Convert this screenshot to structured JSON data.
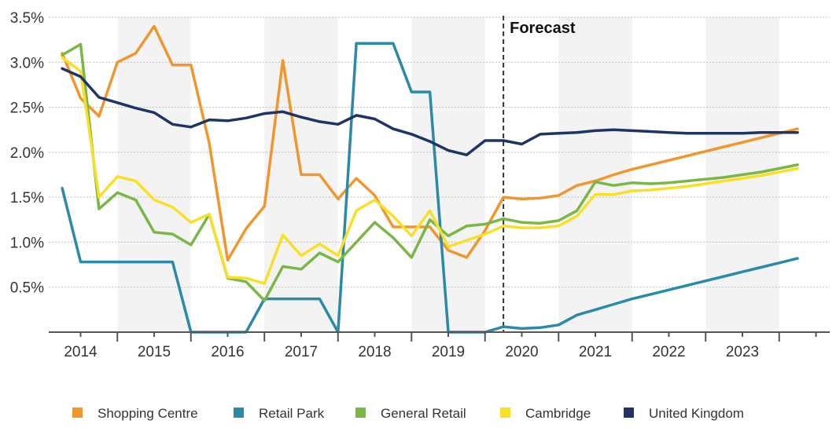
{
  "chart_data": {
    "type": "line",
    "title": "",
    "xlabel": "",
    "ylabel": "",
    "xlim": [
      2013.5,
      2024.0
    ],
    "ylim": [
      0,
      3.5
    ],
    "y_ticks": [
      {
        "value": 0.5,
        "label": "0.5%"
      },
      {
        "value": 1.0,
        "label": "1.0%"
      },
      {
        "value": 1.5,
        "label": "1.5%"
      },
      {
        "value": 2.0,
        "label": "2.0%"
      },
      {
        "value": 2.5,
        "label": "2.5%"
      },
      {
        "value": 3.0,
        "label": "3.0%"
      },
      {
        "value": 3.5,
        "label": "3.5%"
      }
    ],
    "x_ticks": [
      "2014",
      "2015",
      "2016",
      "2017",
      "2018",
      "2019",
      "2020",
      "2021",
      "2022",
      "2023"
    ],
    "grid": "horizontal dotted",
    "year_bands": "alternating shaded",
    "legend_position": "bottom",
    "forecast_marker": {
      "x": 2019.75,
      "label": "Forecast"
    },
    "series": [
      {
        "name": "Shopping Centre",
        "color": "#f0962e",
        "points": [
          [
            2013.75,
            3.1
          ],
          [
            2014.0,
            2.6
          ],
          [
            2014.25,
            2.4
          ],
          [
            2014.5,
            3.0
          ],
          [
            2014.75,
            3.1
          ],
          [
            2015.0,
            3.4
          ],
          [
            2015.25,
            2.97
          ],
          [
            2015.5,
            2.97
          ],
          [
            2015.75,
            2.1
          ],
          [
            2016.0,
            0.8
          ],
          [
            2016.25,
            1.15
          ],
          [
            2016.5,
            1.4
          ],
          [
            2016.75,
            3.02
          ],
          [
            2017.0,
            1.75
          ],
          [
            2017.25,
            1.75
          ],
          [
            2017.5,
            1.48
          ],
          [
            2017.75,
            1.71
          ],
          [
            2018.0,
            1.52
          ],
          [
            2018.25,
            1.17
          ],
          [
            2018.5,
            1.17
          ],
          [
            2018.75,
            1.17
          ],
          [
            2019.0,
            0.91
          ],
          [
            2019.25,
            0.83
          ],
          [
            2019.5,
            1.13
          ],
          [
            2019.75,
            1.5
          ],
          [
            2020.0,
            1.48
          ],
          [
            2020.25,
            1.49
          ],
          [
            2020.5,
            1.52
          ],
          [
            2020.75,
            1.63
          ],
          [
            2021.0,
            1.68
          ],
          [
            2021.25,
            1.75
          ],
          [
            2021.5,
            1.81
          ],
          [
            2021.75,
            1.86
          ],
          [
            2022.0,
            1.91
          ],
          [
            2022.25,
            1.96
          ],
          [
            2022.5,
            2.01
          ],
          [
            2022.75,
            2.06
          ],
          [
            2023.0,
            2.11
          ],
          [
            2023.25,
            2.16
          ],
          [
            2023.5,
            2.21
          ],
          [
            2023.75,
            2.26
          ]
        ]
      },
      {
        "name": "Retail Park",
        "color": "#2a8aa8",
        "points": [
          [
            2013.75,
            1.6
          ],
          [
            2014.0,
            0.78
          ],
          [
            2014.25,
            0.78
          ],
          [
            2014.5,
            0.78
          ],
          [
            2014.75,
            0.78
          ],
          [
            2015.0,
            0.78
          ],
          [
            2015.25,
            0.78
          ],
          [
            2015.5,
            0.0
          ],
          [
            2015.75,
            0.0
          ],
          [
            2016.0,
            0.0
          ],
          [
            2016.25,
            0.0
          ],
          [
            2016.5,
            0.37
          ],
          [
            2016.75,
            0.37
          ],
          [
            2017.0,
            0.37
          ],
          [
            2017.25,
            0.37
          ],
          [
            2017.5,
            0.0
          ],
          [
            2017.75,
            3.21
          ],
          [
            2018.0,
            3.21
          ],
          [
            2018.25,
            3.21
          ],
          [
            2018.5,
            2.67
          ],
          [
            2018.75,
            2.67
          ],
          [
            2019.0,
            0.0
          ],
          [
            2019.25,
            0.0
          ],
          [
            2019.5,
            0.0
          ],
          [
            2019.75,
            0.06
          ],
          [
            2020.0,
            0.04
          ],
          [
            2020.25,
            0.05
          ],
          [
            2020.5,
            0.08
          ],
          [
            2020.75,
            0.19
          ],
          [
            2021.0,
            0.25
          ],
          [
            2021.25,
            0.31
          ],
          [
            2021.5,
            0.37
          ],
          [
            2021.75,
            0.42
          ],
          [
            2022.0,
            0.47
          ],
          [
            2022.25,
            0.52
          ],
          [
            2022.5,
            0.57
          ],
          [
            2022.75,
            0.62
          ],
          [
            2023.0,
            0.67
          ],
          [
            2023.25,
            0.72
          ],
          [
            2023.5,
            0.77
          ],
          [
            2023.75,
            0.82
          ]
        ]
      },
      {
        "name": "General Retail",
        "color": "#7ab648",
        "points": [
          [
            2013.75,
            3.08
          ],
          [
            2014.0,
            3.2
          ],
          [
            2014.25,
            1.37
          ],
          [
            2014.5,
            1.55
          ],
          [
            2014.75,
            1.47
          ],
          [
            2015.0,
            1.11
          ],
          [
            2015.25,
            1.09
          ],
          [
            2015.5,
            0.97
          ],
          [
            2015.75,
            1.31
          ],
          [
            2016.0,
            0.6
          ],
          [
            2016.25,
            0.56
          ],
          [
            2016.5,
            0.35
          ],
          [
            2016.75,
            0.73
          ],
          [
            2017.0,
            0.7
          ],
          [
            2017.25,
            0.88
          ],
          [
            2017.5,
            0.78
          ],
          [
            2017.75,
            1.0
          ],
          [
            2018.0,
            1.22
          ],
          [
            2018.25,
            1.05
          ],
          [
            2018.5,
            0.83
          ],
          [
            2018.75,
            1.25
          ],
          [
            2019.0,
            1.07
          ],
          [
            2019.25,
            1.18
          ],
          [
            2019.5,
            1.2
          ],
          [
            2019.75,
            1.26
          ],
          [
            2020.0,
            1.22
          ],
          [
            2020.25,
            1.21
          ],
          [
            2020.5,
            1.24
          ],
          [
            2020.75,
            1.35
          ],
          [
            2021.0,
            1.67
          ],
          [
            2021.25,
            1.63
          ],
          [
            2021.5,
            1.66
          ],
          [
            2021.75,
            1.65
          ],
          [
            2022.0,
            1.66
          ],
          [
            2022.25,
            1.68
          ],
          [
            2022.5,
            1.7
          ],
          [
            2022.75,
            1.72
          ],
          [
            2023.0,
            1.75
          ],
          [
            2023.25,
            1.78
          ],
          [
            2023.5,
            1.82
          ],
          [
            2023.75,
            1.86
          ]
        ]
      },
      {
        "name": "Cambridge",
        "color": "#f8e02a",
        "points": [
          [
            2013.75,
            3.05
          ],
          [
            2014.0,
            2.9
          ],
          [
            2014.25,
            1.5
          ],
          [
            2014.5,
            1.73
          ],
          [
            2014.75,
            1.68
          ],
          [
            2015.0,
            1.47
          ],
          [
            2015.25,
            1.39
          ],
          [
            2015.5,
            1.22
          ],
          [
            2015.75,
            1.31
          ],
          [
            2016.0,
            0.61
          ],
          [
            2016.25,
            0.6
          ],
          [
            2016.5,
            0.54
          ],
          [
            2016.75,
            1.08
          ],
          [
            2017.0,
            0.85
          ],
          [
            2017.25,
            0.98
          ],
          [
            2017.5,
            0.85
          ],
          [
            2017.75,
            1.35
          ],
          [
            2018.0,
            1.47
          ],
          [
            2018.25,
            1.29
          ],
          [
            2018.5,
            1.07
          ],
          [
            2018.75,
            1.35
          ],
          [
            2019.0,
            0.95
          ],
          [
            2019.25,
            1.02
          ],
          [
            2019.5,
            1.09
          ],
          [
            2019.75,
            1.18
          ],
          [
            2020.0,
            1.16
          ],
          [
            2020.25,
            1.16
          ],
          [
            2020.5,
            1.18
          ],
          [
            2020.75,
            1.29
          ],
          [
            2021.0,
            1.53
          ],
          [
            2021.25,
            1.53
          ],
          [
            2021.5,
            1.57
          ],
          [
            2021.75,
            1.58
          ],
          [
            2022.0,
            1.6
          ],
          [
            2022.25,
            1.62
          ],
          [
            2022.5,
            1.65
          ],
          [
            2022.75,
            1.68
          ],
          [
            2023.0,
            1.71
          ],
          [
            2023.25,
            1.74
          ],
          [
            2023.5,
            1.78
          ],
          [
            2023.75,
            1.82
          ]
        ]
      },
      {
        "name": "United Kingdom",
        "color": "#1f3466",
        "points": [
          [
            2013.75,
            2.93
          ],
          [
            2014.0,
            2.84
          ],
          [
            2014.25,
            2.61
          ],
          [
            2014.5,
            2.55
          ],
          [
            2014.75,
            2.49
          ],
          [
            2015.0,
            2.44
          ],
          [
            2015.25,
            2.31
          ],
          [
            2015.5,
            2.28
          ],
          [
            2015.75,
            2.36
          ],
          [
            2016.0,
            2.35
          ],
          [
            2016.25,
            2.38
          ],
          [
            2016.5,
            2.43
          ],
          [
            2016.75,
            2.45
          ],
          [
            2017.0,
            2.39
          ],
          [
            2017.25,
            2.34
          ],
          [
            2017.5,
            2.31
          ],
          [
            2017.75,
            2.41
          ],
          [
            2018.0,
            2.37
          ],
          [
            2018.25,
            2.26
          ],
          [
            2018.5,
            2.2
          ],
          [
            2018.75,
            2.12
          ],
          [
            2019.0,
            2.02
          ],
          [
            2019.25,
            1.97
          ],
          [
            2019.5,
            2.13
          ],
          [
            2019.75,
            2.13
          ],
          [
            2020.0,
            2.09
          ],
          [
            2020.25,
            2.2
          ],
          [
            2020.5,
            2.21
          ],
          [
            2020.75,
            2.22
          ],
          [
            2021.0,
            2.24
          ],
          [
            2021.25,
            2.25
          ],
          [
            2021.5,
            2.24
          ],
          [
            2021.75,
            2.23
          ],
          [
            2022.0,
            2.22
          ],
          [
            2022.25,
            2.21
          ],
          [
            2022.5,
            2.21
          ],
          [
            2022.75,
            2.21
          ],
          [
            2023.0,
            2.21
          ],
          [
            2023.25,
            2.22
          ],
          [
            2023.5,
            2.22
          ],
          [
            2023.75,
            2.22
          ]
        ]
      }
    ]
  }
}
